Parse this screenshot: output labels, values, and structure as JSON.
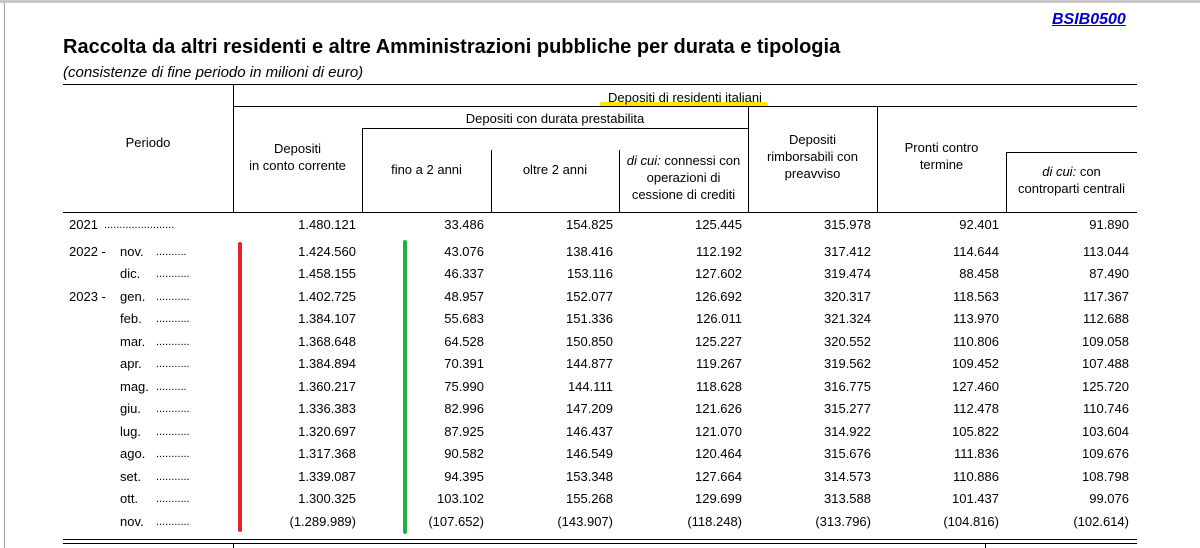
{
  "code": "BSIB0500",
  "title": "Raccolta da altri residenti e altre Amministrazioni pubbliche per durata e tipologia",
  "subtitle": "(consistenze di fine periodo in milioni di euro)",
  "headers": {
    "periodo": "Periodo",
    "residenti": "Depositi di residenti italiani",
    "durata": "Depositi con durata prestabilita",
    "conto_1": "Depositi",
    "conto_2": "in conto corrente",
    "fino2": "fino a 2 anni",
    "oltre2": "oltre 2 anni",
    "dicui": "di cui:",
    "connessi_1": "connessi con",
    "connessi_2": "operazioni di",
    "connessi_3": "cessione di crediti",
    "rimb_1": "Depositi",
    "rimb_2": "rimborsabili con",
    "rimb_3": "preavviso",
    "pronti_1": "Pronti contro",
    "pronti_2": "termine",
    "contro_dicui": "di cui:",
    "contro_1": "con",
    "contro_2": "controparti centrali"
  },
  "dots": "..........",
  "rows": [
    {
      "year": "2021",
      "month": "",
      "dots": ".......................",
      "v": [
        "1.480.121",
        "33.486",
        "154.825",
        "125.445",
        "315.978",
        "92.401",
        "91.890"
      ]
    },
    {
      "year": "2022 -",
      "month": "nov.",
      "dots": "..........",
      "v": [
        "1.424.560",
        "43.076",
        "138.416",
        "112.192",
        "317.412",
        "114.644",
        "113.044"
      ]
    },
    {
      "year": "",
      "month": "dic.",
      "dots": "...........",
      "v": [
        "1.458.155",
        "46.337",
        "153.116",
        "127.602",
        "319.474",
        "88.458",
        "87.490"
      ]
    },
    {
      "year": "2023 -",
      "month": "gen.",
      "dots": "...........",
      "v": [
        "1.402.725",
        "48.957",
        "152.077",
        "126.692",
        "320.317",
        "118.563",
        "117.367"
      ]
    },
    {
      "year": "",
      "month": "feb.",
      "dots": "...........",
      "v": [
        "1.384.107",
        "55.683",
        "151.336",
        "126.011",
        "321.324",
        "113.970",
        "112.688"
      ]
    },
    {
      "year": "",
      "month": "mar.",
      "dots": "...........",
      "v": [
        "1.368.648",
        "64.528",
        "150.850",
        "125.227",
        "320.552",
        "110.806",
        "109.058"
      ]
    },
    {
      "year": "",
      "month": "apr.",
      "dots": "...........",
      "v": [
        "1.384.894",
        "70.391",
        "144.877",
        "119.267",
        "319.562",
        "109.452",
        "107.488"
      ]
    },
    {
      "year": "",
      "month": "mag.",
      "dots": "..........",
      "v": [
        "1.360.217",
        "75.990",
        "144.111",
        "118.628",
        "316.775",
        "127.460",
        "125.720"
      ]
    },
    {
      "year": "",
      "month": "giu.",
      "dots": "...........",
      "v": [
        "1.336.383",
        "82.996",
        "147.209",
        "121.626",
        "315.277",
        "112.478",
        "110.746"
      ]
    },
    {
      "year": "",
      "month": "lug.",
      "dots": "...........",
      "v": [
        "1.320.697",
        "87.925",
        "146.437",
        "121.070",
        "314.922",
        "105.822",
        "103.604"
      ]
    },
    {
      "year": "",
      "month": "ago.",
      "dots": "...........",
      "v": [
        "1.317.368",
        "90.582",
        "146.549",
        "120.464",
        "315.676",
        "111.836",
        "109.676"
      ]
    },
    {
      "year": "",
      "month": "set.",
      "dots": "...........",
      "v": [
        "1.339.087",
        "94.395",
        "153.348",
        "127.664",
        "314.573",
        "110.886",
        "108.798"
      ]
    },
    {
      "year": "",
      "month": "ott.",
      "dots": "...........",
      "v": [
        "1.300.325",
        "103.102",
        "155.268",
        "129.699",
        "313.588",
        "101.437",
        "99.076"
      ]
    },
    {
      "year": "",
      "month": "nov.",
      "dots": "...........",
      "v": [
        "(1.289.989)",
        "(107.652)",
        "(143.907)",
        "(118.248)",
        "(313.796)",
        "(104.816)",
        "(102.614)"
      ]
    }
  ],
  "colors": {
    "red_mark": "#e8212a",
    "green_mark": "#1db33f",
    "highlight": "#ffe600",
    "link": "#0000cc"
  }
}
